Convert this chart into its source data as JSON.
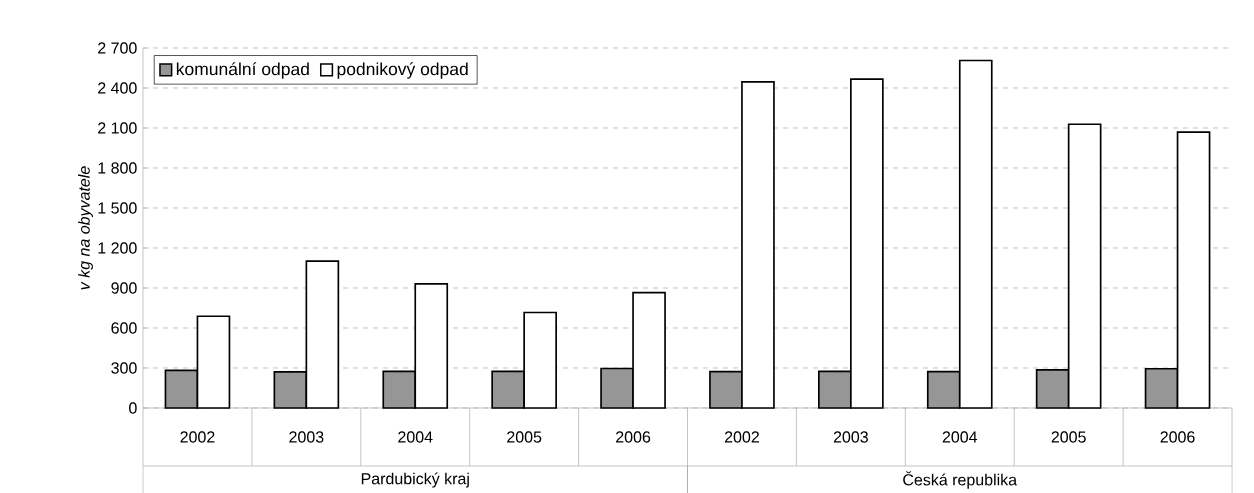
{
  "chart_data": {
    "type": "bar",
    "ylabel": "v kg na obyvatele",
    "categories": [
      "2002",
      "2003",
      "2004",
      "2005",
      "2006",
      "2002",
      "2003",
      "2004",
      "2005",
      "2006"
    ],
    "annotations": [
      "Pardubický kraj",
      "Česká republika"
    ],
    "series": [
      {
        "name": "komunální odpad",
        "color": "#969696",
        "values": [
          282,
          271,
          274,
          274,
          296,
          273,
          275,
          273,
          286,
          294
        ]
      },
      {
        "name": "podnikový odpad",
        "color": "#ffffff",
        "values": [
          688,
          1102,
          931,
          716,
          865,
          2446,
          2467,
          2606,
          2128,
          2069
        ]
      }
    ],
    "ylim": [
      0,
      2700
    ],
    "yticks": [
      0,
      300,
      600,
      900,
      {
        "value": 1200,
        "label": "1 200"
      },
      {
        "value": 1500,
        "label": "1 500"
      },
      {
        "value": 1800,
        "label": "1 800"
      },
      {
        "value": 2100,
        "label": "2 100"
      },
      {
        "value": 2400,
        "label": "2 400"
      },
      {
        "value": 2700,
        "label": "2 700"
      }
    ],
    "grid": "y",
    "legend": "top left"
  }
}
